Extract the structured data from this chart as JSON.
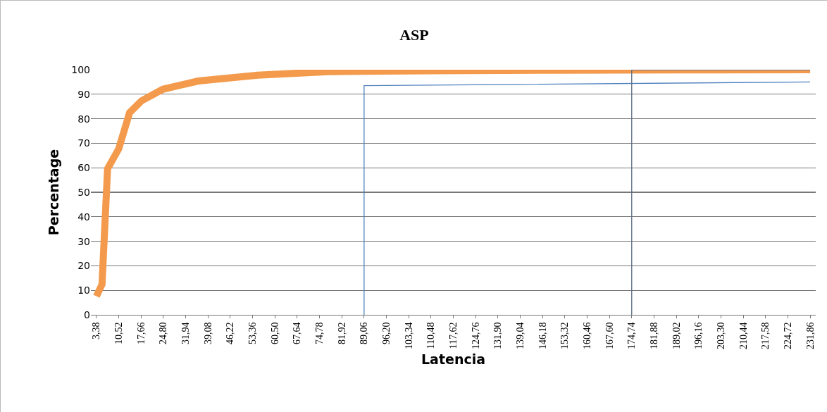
{
  "chart_data": {
    "type": "line",
    "title": "ASP",
    "xlabel": "Latencia",
    "ylabel": "Percentage",
    "series": [
      {
        "color": "#f39a4c",
        "x": [
          3.38,
          5.17,
          6.95,
          10.52,
          14.0,
          17.8,
          24.6,
          36,
          55,
          77.6,
          110,
          150,
          190,
          231.86
        ],
        "values": [
          7.6,
          12.4,
          59.6,
          67.7,
          82.5,
          87.3,
          92,
          95.4,
          97.8,
          99.2,
          99.6,
          99.8,
          99.9,
          100
        ]
      },
      {
        "color": "#4f81bd",
        "x": [
          89.06,
          89.06,
          231.86
        ],
        "values": [
          0,
          93.5,
          95
        ]
      },
      {
        "color": "#5a6a80",
        "x": [
          174.74,
          174.74,
          231.86
        ],
        "values": [
          0,
          100,
          100
        ]
      }
    ],
    "xlim": [
      1.6,
      233.65
    ],
    "xticks": [
      {
        "value": 3.38,
        "label": "3,38"
      },
      {
        "value": 10.52,
        "label": "10,52"
      },
      {
        "value": 17.66,
        "label": "17,66"
      },
      {
        "value": 24.8,
        "label": "24,80"
      },
      {
        "value": 31.94,
        "label": "31,94"
      },
      {
        "value": 39.08,
        "label": "39,08"
      },
      {
        "value": 46.22,
        "label": "46,22"
      },
      {
        "value": 53.36,
        "label": "53,36"
      },
      {
        "value": 60.5,
        "label": "60,50"
      },
      {
        "value": 67.64,
        "label": "67,64"
      },
      {
        "value": 74.78,
        "label": "74,78"
      },
      {
        "value": 81.92,
        "label": "81,92"
      },
      {
        "value": 89.06,
        "label": "89,06"
      },
      {
        "value": 96.2,
        "label": "96,20"
      },
      {
        "value": 103.34,
        "label": "103,34"
      },
      {
        "value": 110.48,
        "label": "110,48"
      },
      {
        "value": 117.62,
        "label": "117,62"
      },
      {
        "value": 124.76,
        "label": "124,76"
      },
      {
        "value": 131.9,
        "label": "131,90"
      },
      {
        "value": 139.04,
        "label": "139,04"
      },
      {
        "value": 146.18,
        "label": "146,18"
      },
      {
        "value": 153.32,
        "label": "153,32"
      },
      {
        "value": 160.46,
        "label": "160,46"
      },
      {
        "value": 167.6,
        "label": "167,60"
      },
      {
        "value": 174.74,
        "label": "174,74"
      },
      {
        "value": 181.88,
        "label": "181,88"
      },
      {
        "value": 189.02,
        "label": "189,02"
      },
      {
        "value": 196.16,
        "label": "196,16"
      },
      {
        "value": 203.3,
        "label": "203,30"
      },
      {
        "value": 210.44,
        "label": "210,44"
      },
      {
        "value": 217.58,
        "label": "217,58"
      },
      {
        "value": 224.72,
        "label": "224,72"
      },
      {
        "value": 231.86,
        "label": "231,86"
      }
    ],
    "ylim": [
      0,
      100
    ],
    "yticks": [
      0,
      10,
      20,
      30,
      40,
      50,
      60,
      70,
      80,
      90,
      100
    ],
    "grid": "y",
    "marker": "none",
    "line_style": "solid"
  }
}
